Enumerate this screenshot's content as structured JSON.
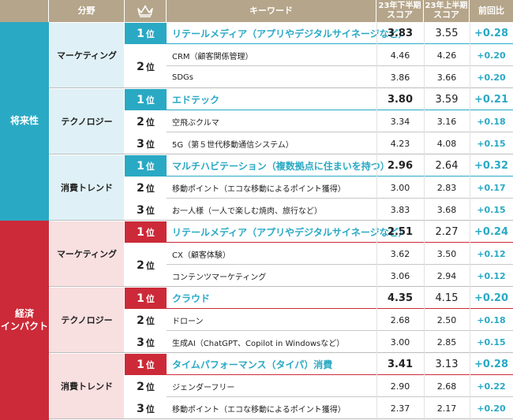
{
  "header": {
    "field": "分野",
    "keyword": "キーワード",
    "score_h2_line1": "23年下半期",
    "score_h2_line2": "スコア",
    "score_h1_line1": "23年上半期",
    "score_h1_line2": "スコア",
    "diff": "前回比",
    "rank_icon": "crown-icon"
  },
  "rank_suffix": "位",
  "colors": {
    "future": "#2aa9c4",
    "economic": "#cc2a38",
    "header": "#b5a58a"
  },
  "sections": [
    {
      "label": "将来性",
      "categories": [
        {
          "name": "マーケティング",
          "rows": [
            {
              "rank": "1",
              "keyword": "リテールメディア（アプリやデジタルサイネージなど）",
              "score_h2": "3.83",
              "score_h1": "3.55",
              "diff": "+0.28"
            },
            {
              "rank": "2",
              "keyword": "CRM（顧客関係管理）",
              "score_h2": "4.46",
              "score_h1": "4.26",
              "diff": "+0.20"
            },
            {
              "rank": "",
              "keyword": "SDGs",
              "score_h2": "3.86",
              "score_h1": "3.66",
              "diff": "+0.20"
            }
          ]
        },
        {
          "name": "テクノロジー",
          "rows": [
            {
              "rank": "1",
              "keyword": "エドテック",
              "score_h2": "3.80",
              "score_h1": "3.59",
              "diff": "+0.21"
            },
            {
              "rank": "2",
              "keyword": "空飛ぶクルマ",
              "score_h2": "3.34",
              "score_h1": "3.16",
              "diff": "+0.18"
            },
            {
              "rank": "3",
              "keyword": "5G（第５世代移動通信システム）",
              "score_h2": "4.23",
              "score_h1": "4.08",
              "diff": "+0.15"
            }
          ]
        },
        {
          "name": "消費トレンド",
          "rows": [
            {
              "rank": "1",
              "keyword": "マルチハビテーション（複数拠点に住まいを持つ）",
              "score_h2": "2.96",
              "score_h1": "2.64",
              "diff": "+0.32"
            },
            {
              "rank": "2",
              "keyword": "移動ポイント（エコな移動によるポイント獲得）",
              "score_h2": "3.00",
              "score_h1": "2.83",
              "diff": "+0.17"
            },
            {
              "rank": "3",
              "keyword": "お一人様（一人で楽しむ焼肉、旅行など）",
              "score_h2": "3.83",
              "score_h1": "3.68",
              "diff": "+0.15"
            }
          ]
        }
      ]
    },
    {
      "label_line1": "経済",
      "label_line2": "インパクト",
      "categories": [
        {
          "name": "マーケティング",
          "rows": [
            {
              "rank": "1",
              "keyword": "リテールメディア（アプリやデジタルサイネージなど）",
              "score_h2": "2.51",
              "score_h1": "2.27",
              "diff": "+0.24"
            },
            {
              "rank": "2",
              "keyword": "CX（顧客体験）",
              "score_h2": "3.62",
              "score_h1": "3.50",
              "diff": "+0.12"
            },
            {
              "rank": "",
              "keyword": "コンテンツマーケティング",
              "score_h2": "3.06",
              "score_h1": "2.94",
              "diff": "+0.12"
            }
          ]
        },
        {
          "name": "テクノロジー",
          "rows": [
            {
              "rank": "1",
              "keyword": "クラウド",
              "score_h2": "4.35",
              "score_h1": "4.15",
              "diff": "+0.20"
            },
            {
              "rank": "2",
              "keyword": "ドローン",
              "score_h2": "2.68",
              "score_h1": "2.50",
              "diff": "+0.18"
            },
            {
              "rank": "3",
              "keyword": "生成AI（ChatGPT、Copilot in Windowsなど）",
              "score_h2": "3.00",
              "score_h1": "2.85",
              "diff": "+0.15"
            }
          ]
        },
        {
          "name": "消費トレンド",
          "rows": [
            {
              "rank": "1",
              "keyword": "タイムパフォーマンス（タイパ）消費",
              "score_h2": "3.41",
              "score_h1": "3.13",
              "diff": "+0.28"
            },
            {
              "rank": "2",
              "keyword": "ジェンダーフリー",
              "score_h2": "2.90",
              "score_h1": "2.68",
              "diff": "+0.22"
            },
            {
              "rank": "3",
              "keyword": "移動ポイント（エコな移動によるポイント獲得）",
              "score_h2": "2.37",
              "score_h1": "2.17",
              "diff": "+0.20"
            }
          ]
        }
      ]
    }
  ]
}
